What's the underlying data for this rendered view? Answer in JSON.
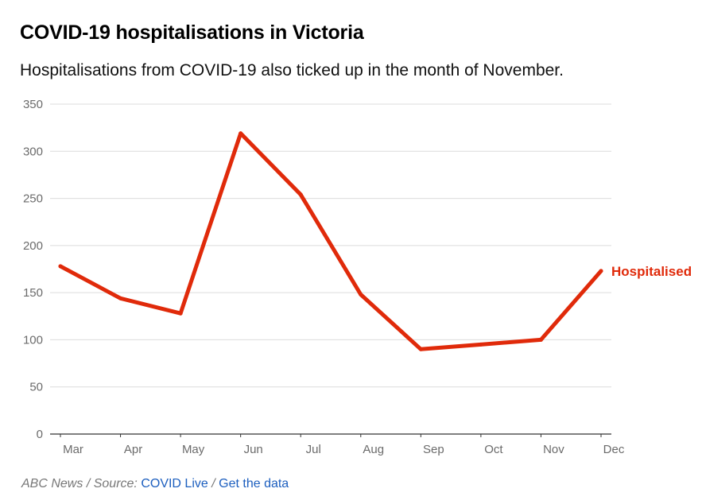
{
  "title": "COVID-19 hospitalisations in Victoria",
  "subtitle": "Hospitalisations from COVID-19 also ticked up in the month of November.",
  "footer": {
    "publisher": "ABC News",
    "separator": "/",
    "source_prefix": "Source:",
    "source_link": "COVID Live",
    "data_link": "Get the data"
  },
  "colors": {
    "series": "#e02a0a",
    "grid": "#dcdcdc",
    "axis": "#333333",
    "link": "#1d5fbf"
  },
  "chart_data": {
    "type": "line",
    "title": "COVID-19 hospitalisations in Victoria",
    "subtitle": "Hospitalisations from COVID-19 also ticked up in the month of November.",
    "categories": [
      "Mar",
      "Apr",
      "May",
      "Jun",
      "Jul",
      "Aug",
      "Sep",
      "Oct",
      "Nov",
      "Dec"
    ],
    "series": [
      {
        "name": "Hospitalised",
        "values": [
          178,
          144,
          128,
          319,
          254,
          148,
          90,
          95,
          100,
          173
        ]
      }
    ],
    "xlabel": "",
    "ylabel": "",
    "ylim": [
      0,
      350
    ],
    "yticks": [
      0,
      50,
      100,
      150,
      200,
      250,
      300,
      350
    ],
    "grid": true,
    "legend": "inline-end"
  }
}
